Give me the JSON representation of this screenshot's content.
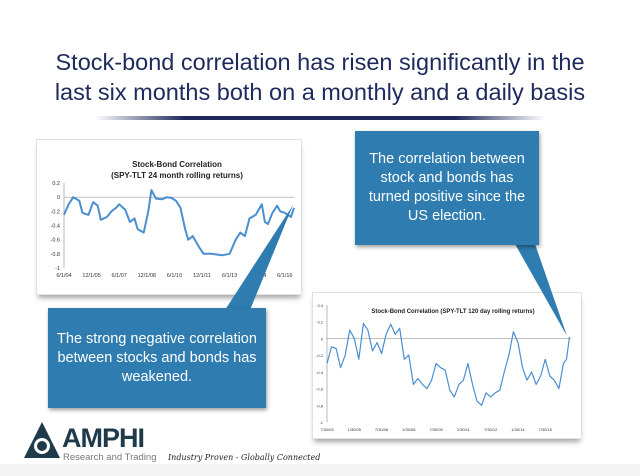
{
  "slide": {
    "title_line1": "Stock-bond correlation has risen significantly in the",
    "title_line2": "last six months both on a monthly and a daily basis"
  },
  "callouts": {
    "top_right": "The correlation between stock and bonds has turned positive since the US election.",
    "bottom_left": "The strong negative correlation between stocks and bonds has weakened."
  },
  "footer": {
    "logo_text": "AMPHI",
    "logo_subtext": "Research and Trading",
    "tagline": "Industry Proven - Globally Connected"
  },
  "colors": {
    "title": "#1e2a5c",
    "callout": "#2f7db0",
    "line": "#4a8fd0"
  },
  "chart_data": [
    {
      "type": "line",
      "title": "Stock-Bond Correlation",
      "subtitle": "(SPY-TLT 24 month rolling returns)",
      "ylim": [
        -1,
        0.2
      ],
      "yticks": [
        "0.2",
        "0",
        "-0.2",
        "-0.4",
        "-0.6",
        "-0.8",
        "-1"
      ],
      "xticks": [
        "6/1/04",
        "12/1/05",
        "6/1/07",
        "12/1/08",
        "6/1/10",
        "12/1/11",
        "6/1/13",
        "12/1/14",
        "6/1/16"
      ],
      "xtick_dates": [
        "2004-06",
        "2005-12",
        "2007-06",
        "2008-12",
        "2010-06",
        "2011-12",
        "2013-06",
        "2014-12",
        "2016-06"
      ],
      "xlim": [
        "2004-06",
        "2016-12"
      ],
      "x": [
        "2004-06",
        "2004-09",
        "2004-12",
        "2005-04",
        "2005-06",
        "2005-10",
        "2006-01",
        "2006-04",
        "2006-06",
        "2006-10",
        "2007-01",
        "2007-04",
        "2007-06",
        "2007-10",
        "2008-01",
        "2008-04",
        "2008-06",
        "2008-10",
        "2009-01",
        "2009-03",
        "2009-06",
        "2009-10",
        "2010-01",
        "2010-04",
        "2010-07",
        "2010-10",
        "2011-01",
        "2011-03",
        "2011-06",
        "2011-10",
        "2012-01",
        "2012-06",
        "2013-01",
        "2013-06",
        "2013-10",
        "2014-01",
        "2014-04",
        "2014-07",
        "2014-11",
        "2015-03",
        "2015-05",
        "2015-07",
        "2015-10",
        "2016-01",
        "2016-03",
        "2016-06",
        "2016-10",
        "2016-12"
      ],
      "values": [
        -0.25,
        -0.1,
        0.0,
        -0.05,
        -0.22,
        -0.25,
        -0.07,
        -0.12,
        -0.32,
        -0.28,
        -0.2,
        -0.15,
        -0.1,
        -0.18,
        -0.35,
        -0.3,
        -0.45,
        -0.5,
        -0.2,
        0.1,
        -0.02,
        -0.03,
        0.0,
        -0.01,
        -0.05,
        -0.15,
        -0.45,
        -0.6,
        -0.55,
        -0.7,
        -0.8,
        -0.8,
        -0.82,
        -0.8,
        -0.6,
        -0.5,
        -0.55,
        -0.3,
        -0.25,
        -0.1,
        -0.35,
        -0.38,
        -0.22,
        -0.12,
        -0.2,
        -0.22,
        -0.28,
        -0.15
      ]
    },
    {
      "type": "line",
      "title": "Stock-Bond Correlation (SPY-TLT 120 day rolling returns)",
      "ylim": [
        -1,
        0.4
      ],
      "yticks": [
        "0.4",
        "0.2",
        "0",
        "-0.2",
        "-0.4",
        "-0.6",
        "-0.8",
        "-1"
      ],
      "xticks": [
        "7/30/03",
        "1/30/05",
        "7/30/06",
        "1/30/08",
        "7/30/09",
        "1/30/11",
        "7/30/12",
        "1/30/14",
        "7/30/15"
      ],
      "xtick_dates": [
        "2003-07",
        "2005-01",
        "2006-07",
        "2008-01",
        "2009-07",
        "2011-01",
        "2012-07",
        "2014-01",
        "2015-07"
      ],
      "xlim": [
        "2003-07",
        "2016-12"
      ],
      "x": [
        "2003-07",
        "2003-10",
        "2004-01",
        "2004-04",
        "2004-07",
        "2004-10",
        "2005-01",
        "2005-04",
        "2005-07",
        "2005-10",
        "2006-01",
        "2006-04",
        "2006-07",
        "2006-10",
        "2007-01",
        "2007-04",
        "2007-07",
        "2007-10",
        "2008-01",
        "2008-04",
        "2008-07",
        "2008-10",
        "2009-01",
        "2009-04",
        "2009-07",
        "2009-10",
        "2010-01",
        "2010-04",
        "2010-07",
        "2010-10",
        "2011-01",
        "2011-04",
        "2011-07",
        "2011-10",
        "2012-01",
        "2012-04",
        "2012-07",
        "2012-10",
        "2013-01",
        "2013-04",
        "2013-07",
        "2013-10",
        "2014-01",
        "2014-04",
        "2014-07",
        "2014-10",
        "2015-01",
        "2015-04",
        "2015-07",
        "2015-10",
        "2016-01",
        "2016-04",
        "2016-07",
        "2016-09",
        "2016-11"
      ],
      "values": [
        -0.3,
        -0.1,
        -0.12,
        -0.35,
        -0.2,
        0.1,
        0.0,
        -0.25,
        0.18,
        0.1,
        -0.15,
        -0.05,
        -0.18,
        0.05,
        0.17,
        0.05,
        0.12,
        -0.25,
        -0.2,
        -0.55,
        -0.48,
        -0.55,
        -0.6,
        -0.5,
        -0.3,
        -0.35,
        -0.38,
        -0.62,
        -0.7,
        -0.55,
        -0.5,
        -0.3,
        -0.55,
        -0.75,
        -0.8,
        -0.65,
        -0.7,
        -0.65,
        -0.62,
        -0.4,
        -0.2,
        0.08,
        -0.05,
        -0.35,
        -0.5,
        -0.4,
        -0.55,
        -0.45,
        -0.25,
        -0.45,
        -0.5,
        -0.6,
        -0.3,
        -0.25,
        0.02
      ]
    }
  ]
}
